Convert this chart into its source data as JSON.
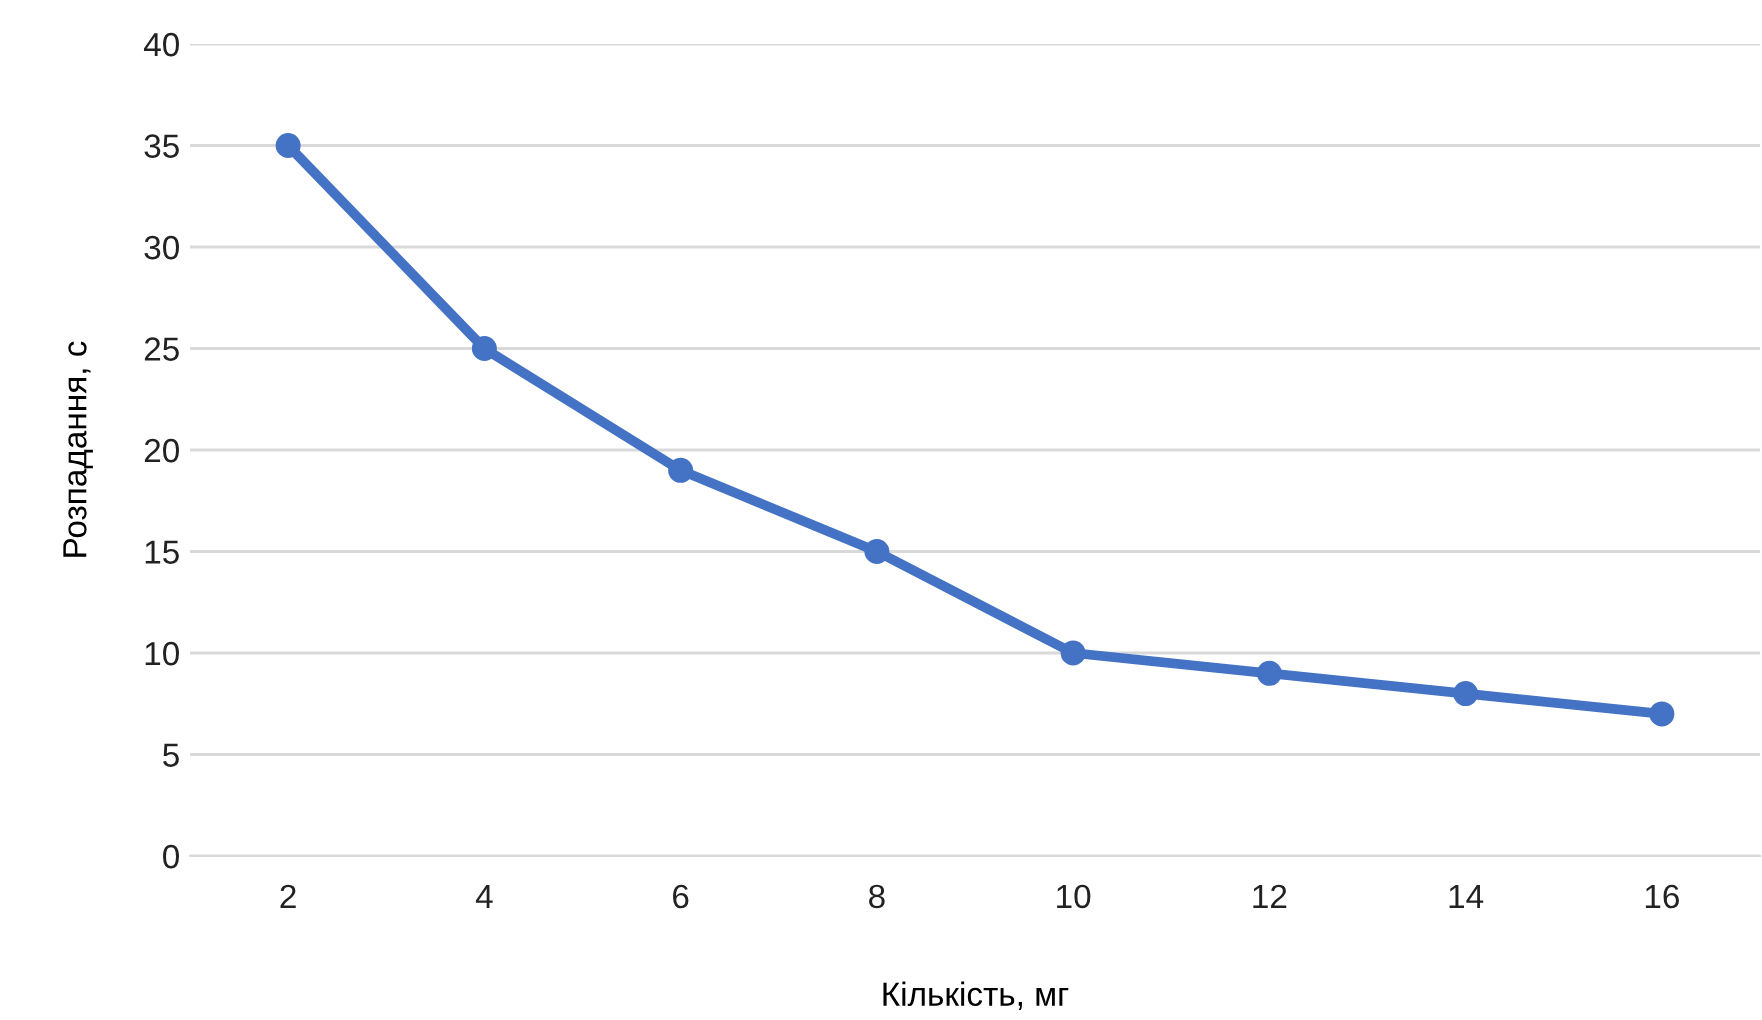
{
  "chart_data": {
    "type": "line",
    "xlabel": "Кількість, мг",
    "ylabel": "Розпадання, с",
    "categories": [
      "2",
      "4",
      "6",
      "8",
      "10",
      "12",
      "14",
      "16"
    ],
    "series": [
      {
        "color": "#4472c4",
        "values": [
          35,
          25,
          19,
          15,
          10,
          9,
          8,
          7
        ]
      }
    ],
    "ylim": [
      0,
      40
    ],
    "yticks": [
      0,
      5,
      10,
      15,
      20,
      25,
      30,
      35,
      40
    ],
    "grid": "y",
    "marker": "circle",
    "line_style": "solid",
    "legend": false
  }
}
